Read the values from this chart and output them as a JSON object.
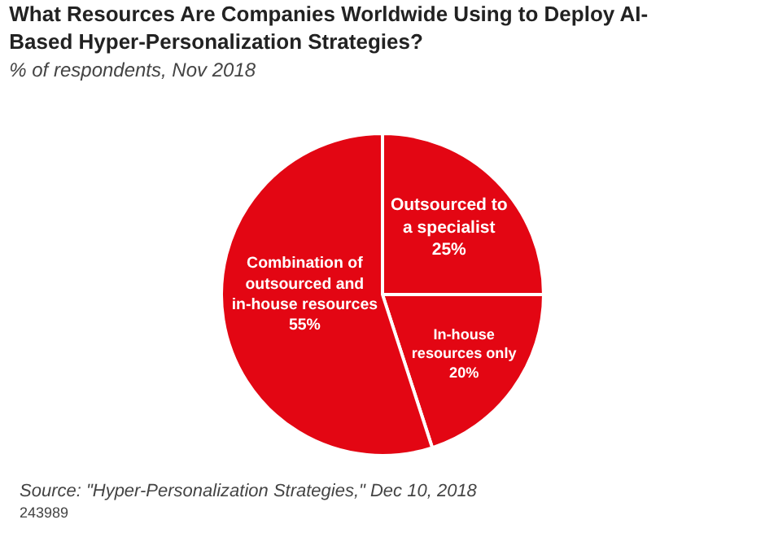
{
  "chart_data": {
    "type": "pie",
    "title": "What Resources Are Companies Worldwide Using to Deploy AI-Based Hyper-Personalization Strategies?",
    "subtitle": "% of respondents, Nov 2018",
    "categories": [
      "Outsourced to a specialist",
      "In-house resources only",
      "Combination of outsourced and in-house resources"
    ],
    "values": [
      25,
      20,
      55
    ],
    "value_labels": [
      "25%",
      "20%",
      "55%"
    ],
    "colors": [
      "#e30613",
      "#e30613",
      "#e30613"
    ],
    "legend": false,
    "annotations": [
      "Source: \"Hyper-Personalization Strategies,\" Dec 10, 2018",
      "243989"
    ]
  }
}
